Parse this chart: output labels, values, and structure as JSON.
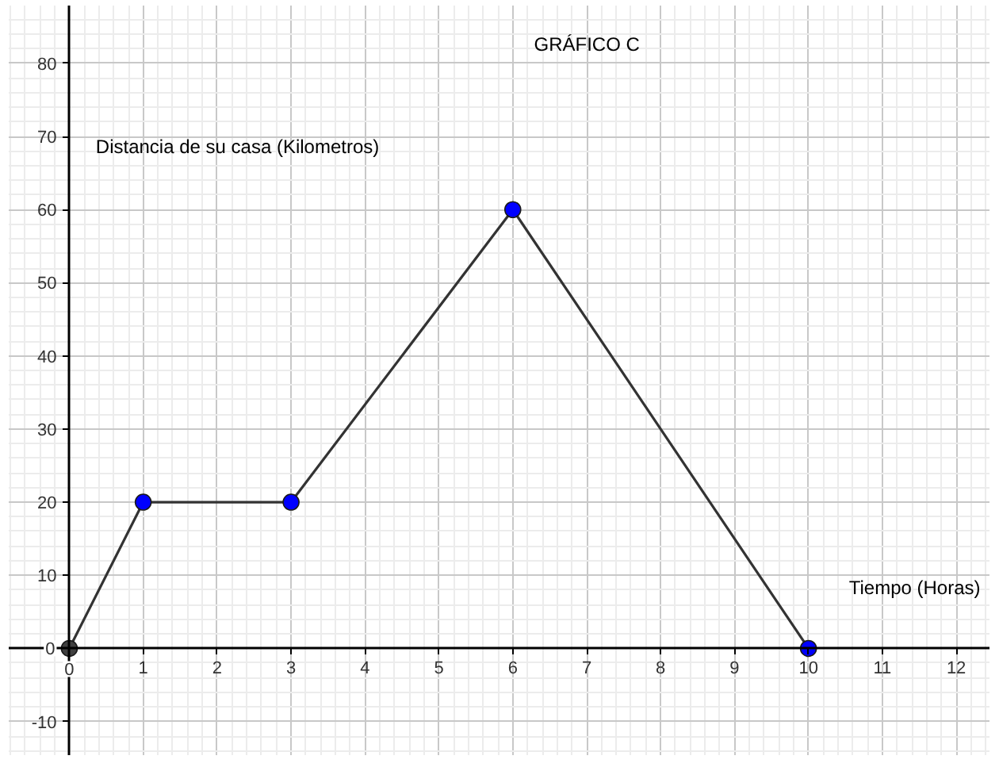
{
  "chart_data": {
    "type": "line",
    "title": "GRÁFICO C",
    "xlabel": "Tiempo (Horas)",
    "ylabel": "Distancia de su casa (Kilometros)",
    "x": [
      0,
      1,
      3,
      6,
      10
    ],
    "series": [
      {
        "color": "#333333",
        "colors": [
          "#404040",
          "#0000ff",
          "#0000ff",
          "#0000ff",
          "#0000ff"
        ],
        "values": [
          0,
          20,
          20,
          60,
          0
        ]
      }
    ],
    "xlim": [
      -0.82,
      12.46
    ],
    "ylim": [
      -14.7,
      87.9
    ],
    "xticks": [
      0,
      1,
      2,
      3,
      4,
      5,
      6,
      7,
      8,
      9,
      10,
      11,
      12
    ],
    "yticks": [
      -10,
      0,
      10,
      20,
      30,
      40,
      50,
      60,
      70,
      80
    ],
    "grid": true,
    "marker": "circle",
    "line_style": "solid"
  }
}
